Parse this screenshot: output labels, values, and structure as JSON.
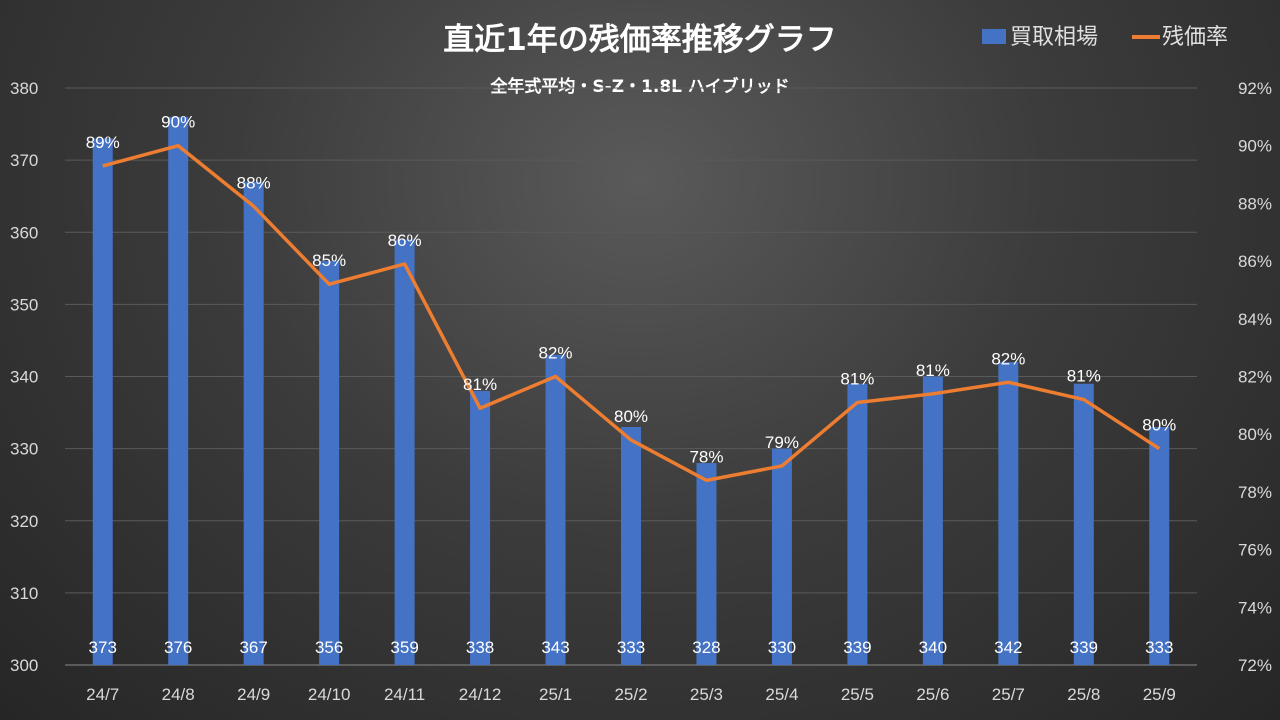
{
  "chart_data": {
    "type": "bar+line",
    "title": "直近1年の残価率推移グラフ",
    "subtitle": "全年式平均・S-Z・1.8L ハイブリッド",
    "categories": [
      "24/7",
      "24/8",
      "24/9",
      "24/10",
      "24/11",
      "24/12",
      "25/1",
      "25/2",
      "25/3",
      "25/4",
      "25/5",
      "25/6",
      "25/7",
      "25/8",
      "25/9"
    ],
    "series": [
      {
        "name": "買取相場",
        "type": "bar",
        "axis": "left",
        "color": "#4472c4",
        "values": [
          373,
          376,
          367,
          356,
          359,
          338,
          343,
          333,
          328,
          330,
          339,
          340,
          342,
          339,
          333
        ]
      },
      {
        "name": "残価率",
        "type": "line",
        "axis": "right",
        "color": "#ed7d31",
        "values": [
          89.3,
          90.0,
          87.9,
          85.2,
          85.9,
          80.9,
          82.0,
          79.8,
          78.4,
          78.9,
          81.1,
          81.4,
          81.8,
          81.2,
          79.5
        ],
        "labels": [
          "89%",
          "90%",
          "88%",
          "85%",
          "86%",
          "81%",
          "82%",
          "80%",
          "78%",
          "79%",
          "81%",
          "81%",
          "82%",
          "81%",
          "80%"
        ]
      }
    ],
    "left_axis": {
      "min": 300,
      "max": 380,
      "step": 10,
      "ticks": [
        "300",
        "310",
        "320",
        "330",
        "340",
        "350",
        "360",
        "370",
        "380"
      ]
    },
    "right_axis": {
      "min": 72,
      "max": 92,
      "step": 2,
      "ticks": [
        "72%",
        "74%",
        "76%",
        "78%",
        "80%",
        "82%",
        "84%",
        "86%",
        "88%",
        "90%",
        "92%"
      ]
    },
    "legend_position": "top-right",
    "grid": true
  }
}
